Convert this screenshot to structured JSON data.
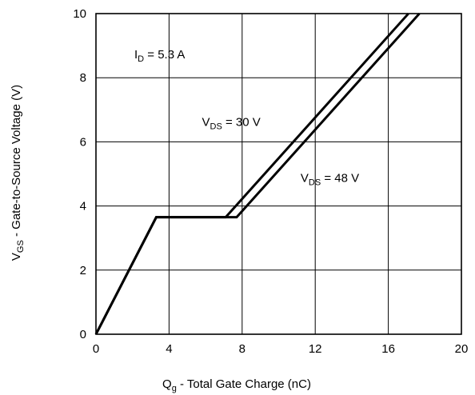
{
  "chart_data": {
    "type": "line",
    "title": "",
    "xlabel": {
      "main": "Q",
      "sub": "g",
      "rest": " - Total Gate Charge (nC)"
    },
    "ylabel": {
      "main": "V",
      "sub": "GS",
      "rest": " - Gate-to-Source Voltage (V)"
    },
    "xlim": [
      0,
      20
    ],
    "ylim": [
      0,
      10
    ],
    "xticks": [
      0,
      4,
      8,
      12,
      16,
      20
    ],
    "yticks": [
      0,
      2,
      4,
      6,
      8,
      10
    ],
    "grid": true,
    "series": [
      {
        "name": "VDS = 30 V",
        "x": [
          0,
          3.3,
          7.1,
          17.1
        ],
        "y": [
          0,
          3.65,
          3.65,
          10
        ]
      },
      {
        "name": "VDS = 48 V",
        "x": [
          0,
          3.3,
          7.7,
          17.7
        ],
        "y": [
          0,
          3.65,
          3.65,
          10
        ]
      }
    ],
    "annotations": [
      {
        "main": "I",
        "sub": "D",
        "rest": " = 5.3 A",
        "x": 2.1,
        "y": 8.6
      },
      {
        "main": "V",
        "sub": "DS",
        "rest": " = 30 V",
        "x": 5.8,
        "y": 6.5
      },
      {
        "main": "V",
        "sub": "DS",
        "rest": " = 48 V",
        "x": 11.2,
        "y": 4.75
      }
    ]
  }
}
